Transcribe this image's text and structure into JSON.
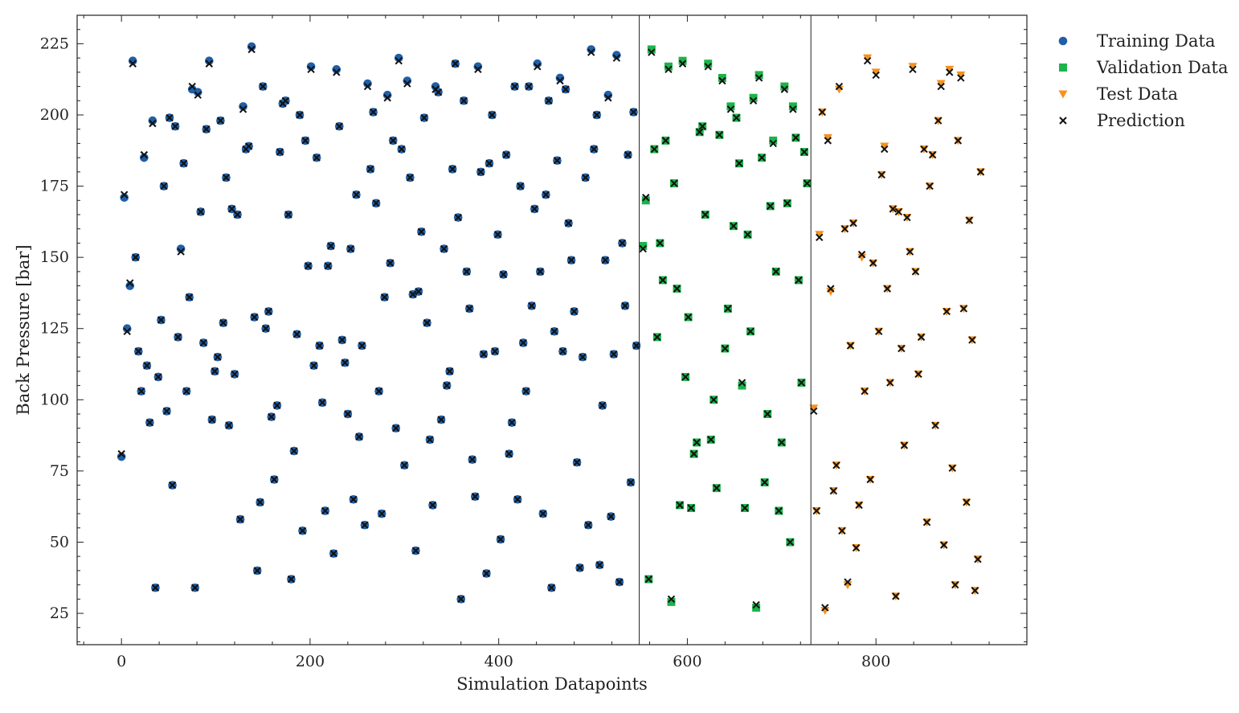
{
  "chart_data": {
    "type": "scatter",
    "xlabel": "Simulation Datapoints",
    "ylabel": "Back Pressure [bar]",
    "xlim": [
      -47,
      960
    ],
    "ylim": [
      14,
      235
    ],
    "xticks": [
      0,
      200,
      400,
      600,
      800
    ],
    "yticks": [
      25,
      50,
      75,
      100,
      125,
      150,
      175,
      200,
      225
    ],
    "grid": false,
    "legend_position": "outside-right-top",
    "split_lines_x": [
      549,
      731
    ],
    "series": [
      {
        "name": "Training Data",
        "marker": "circle",
        "color": "#1f5fa8",
        "x": [
          0,
          3,
          6,
          9,
          12,
          15,
          18,
          21,
          24,
          27,
          30,
          33,
          36,
          39,
          42,
          45,
          48,
          51,
          54,
          57,
          60,
          63,
          66,
          69,
          72,
          75,
          78,
          81,
          84,
          87,
          90,
          93,
          96,
          99,
          102,
          105,
          108,
          111,
          114,
          117,
          120,
          123,
          126,
          129,
          132,
          135,
          138,
          141,
          144,
          147,
          150,
          153,
          156,
          159,
          162,
          165,
          168,
          171,
          174,
          177,
          180,
          183,
          186,
          189,
          192,
          195,
          198,
          201,
          204,
          207,
          210,
          213,
          216,
          219,
          222,
          225,
          228,
          231,
          234,
          237,
          240,
          243,
          246,
          249,
          252,
          255,
          258,
          261,
          264,
          267,
          270,
          273,
          276,
          279,
          282,
          285,
          288,
          291,
          294,
          297,
          300,
          303,
          306,
          309,
          312,
          315,
          318,
          321,
          324,
          327,
          330,
          333,
          336,
          339,
          342,
          345,
          348,
          351,
          354,
          357,
          360,
          363,
          366,
          369,
          372,
          375,
          378,
          381,
          384,
          387,
          390,
          393,
          396,
          399,
          402,
          405,
          408,
          411,
          414,
          417,
          420,
          423,
          426,
          429,
          432,
          435,
          438,
          441,
          444,
          447,
          450,
          453,
          456,
          459,
          462,
          465,
          468,
          471,
          474,
          477,
          480,
          483,
          486,
          489,
          492,
          495,
          498,
          501,
          504,
          507,
          510,
          513,
          516,
          519,
          522,
          525,
          528,
          531,
          534,
          537,
          540,
          543,
          546
        ],
        "y": [
          80,
          171,
          125,
          140,
          219,
          150,
          117,
          103,
          185,
          112,
          92,
          198,
          34,
          108,
          128,
          175,
          96,
          199,
          70,
          196,
          122,
          153,
          183,
          103,
          136,
          209,
          34,
          208,
          166,
          120,
          195,
          219,
          93,
          110,
          115,
          198,
          127,
          178,
          91,
          167,
          109,
          165,
          58,
          203,
          188,
          189,
          224,
          129,
          40,
          64,
          210,
          125,
          131,
          94,
          72,
          98,
          187,
          204,
          205,
          165,
          37,
          82,
          123,
          200,
          54,
          191,
          147,
          217,
          112,
          185,
          119,
          99,
          61,
          147,
          154,
          46,
          216,
          196,
          121,
          113,
          95,
          153,
          65,
          172,
          87,
          119,
          56,
          211,
          181,
          201,
          169,
          103,
          60,
          136,
          207,
          148,
          191,
          90,
          220,
          188,
          77,
          212,
          178,
          137,
          47,
          138,
          159,
          199,
          127,
          86,
          63,
          210,
          208,
          93,
          153,
          105,
          110,
          181,
          218,
          164,
          30,
          205,
          145,
          132,
          79,
          66,
          217,
          180,
          116,
          39,
          183,
          200,
          117,
          158,
          51,
          144,
          186,
          81,
          92,
          210,
          65,
          175,
          120,
          103,
          210,
          133,
          167,
          218,
          145,
          60,
          172,
          205,
          34,
          124,
          184,
          213,
          117,
          209,
          162,
          149,
          131,
          78,
          41,
          115,
          178,
          56,
          223,
          188,
          200,
          42,
          98,
          149,
          207,
          59,
          116,
          221,
          36,
          155,
          133,
          186,
          71,
          201,
          119
        ]
      },
      {
        "name": "Validation Data",
        "marker": "square",
        "color": "#1bb44a",
        "x": [
          553,
          556,
          559,
          562,
          565,
          568,
          571,
          574,
          577,
          580,
          583,
          586,
          589,
          592,
          595,
          598,
          601,
          604,
          607,
          610,
          613,
          616,
          619,
          622,
          625,
          628,
          631,
          634,
          637,
          640,
          643,
          646,
          649,
          652,
          655,
          658,
          661,
          664,
          667,
          670,
          673,
          676,
          679,
          682,
          685,
          688,
          691,
          694,
          697,
          700,
          703,
          706,
          709,
          712,
          715,
          718,
          721,
          724,
          727
        ],
        "y": [
          154,
          170,
          37,
          223,
          188,
          122,
          155,
          142,
          191,
          217,
          29,
          176,
          139,
          63,
          219,
          108,
          129,
          62,
          81,
          85,
          194,
          196,
          165,
          218,
          86,
          100,
          69,
          193,
          213,
          118,
          132,
          203,
          161,
          199,
          183,
          105,
          62,
          158,
          124,
          206,
          27,
          214,
          185,
          71,
          95,
          168,
          191,
          145,
          61,
          85,
          210,
          169,
          50,
          203,
          192,
          142,
          106,
          187,
          176
        ]
      },
      {
        "name": "Test Data",
        "marker": "triangle-down",
        "color": "#f5921e",
        "x": [
          734,
          737,
          740,
          743,
          746,
          749,
          752,
          755,
          758,
          761,
          764,
          767,
          770,
          773,
          776,
          779,
          782,
          785,
          788,
          791,
          794,
          797,
          800,
          803,
          806,
          809,
          812,
          815,
          818,
          821,
          824,
          827,
          830,
          833,
          836,
          839,
          842,
          845,
          848,
          851,
          854,
          857,
          860,
          863,
          866,
          869,
          872,
          875,
          878,
          881,
          884,
          887,
          890,
          893,
          896,
          899,
          902,
          905,
          908,
          911
        ],
        "y": [
          97,
          61,
          158,
          201,
          26,
          192,
          138,
          68,
          77,
          209,
          54,
          160,
          35,
          119,
          162,
          48,
          63,
          150,
          103,
          220,
          72,
          148,
          215,
          124,
          179,
          189,
          139,
          106,
          167,
          31,
          166,
          118,
          84,
          164,
          152,
          217,
          145,
          109,
          122,
          188,
          57,
          175,
          186,
          91,
          198,
          211,
          49,
          131,
          216,
          76,
          35,
          191,
          214,
          132,
          64,
          163,
          121,
          33,
          44,
          180
        ]
      },
      {
        "name": "Prediction",
        "marker": "x",
        "color": "#111111",
        "x": [
          0,
          3,
          6,
          9,
          12,
          15,
          18,
          21,
          24,
          27,
          30,
          33,
          36,
          39,
          42,
          45,
          48,
          51,
          54,
          57,
          60,
          63,
          66,
          69,
          72,
          75,
          78,
          81,
          84,
          87,
          90,
          93,
          96,
          99,
          102,
          105,
          108,
          111,
          114,
          117,
          120,
          123,
          126,
          129,
          132,
          135,
          138,
          141,
          144,
          147,
          150,
          153,
          156,
          159,
          162,
          165,
          168,
          171,
          174,
          177,
          180,
          183,
          186,
          189,
          192,
          195,
          198,
          201,
          204,
          207,
          210,
          213,
          216,
          219,
          222,
          225,
          228,
          231,
          234,
          237,
          240,
          243,
          246,
          249,
          252,
          255,
          258,
          261,
          264,
          267,
          270,
          273,
          276,
          279,
          282,
          285,
          288,
          291,
          294,
          297,
          300,
          303,
          306,
          309,
          312,
          315,
          318,
          321,
          324,
          327,
          330,
          333,
          336,
          339,
          342,
          345,
          348,
          351,
          354,
          357,
          360,
          363,
          366,
          369,
          372,
          375,
          378,
          381,
          384,
          387,
          390,
          393,
          396,
          399,
          402,
          405,
          408,
          411,
          414,
          417,
          420,
          423,
          426,
          429,
          432,
          435,
          438,
          441,
          444,
          447,
          450,
          453,
          456,
          459,
          462,
          465,
          468,
          471,
          474,
          477,
          480,
          483,
          486,
          489,
          492,
          495,
          498,
          501,
          504,
          507,
          510,
          513,
          516,
          519,
          522,
          525,
          528,
          531,
          534,
          537,
          540,
          543,
          546,
          553,
          556,
          559,
          562,
          565,
          568,
          571,
          574,
          577,
          580,
          583,
          586,
          589,
          592,
          595,
          598,
          601,
          604,
          607,
          610,
          613,
          616,
          619,
          622,
          625,
          628,
          631,
          634,
          637,
          640,
          643,
          646,
          649,
          652,
          655,
          658,
          661,
          664,
          667,
          670,
          673,
          676,
          679,
          682,
          685,
          688,
          691,
          694,
          697,
          700,
          703,
          706,
          709,
          712,
          715,
          718,
          721,
          724,
          727,
          734,
          737,
          740,
          743,
          746,
          749,
          752,
          755,
          758,
          761,
          764,
          767,
          770,
          773,
          776,
          779,
          782,
          785,
          788,
          791,
          794,
          797,
          800,
          803,
          806,
          809,
          812,
          815,
          818,
          821,
          824,
          827,
          830,
          833,
          836,
          839,
          842,
          845,
          848,
          851,
          854,
          857,
          860,
          863,
          866,
          869,
          872,
          875,
          878,
          881,
          884,
          887,
          890,
          893,
          896,
          899,
          902,
          905,
          908,
          911
        ],
        "y": [
          81,
          172,
          124,
          141,
          218,
          150,
          117,
          103,
          186,
          112,
          92,
          197,
          34,
          108,
          128,
          175,
          96,
          199,
          70,
          196,
          122,
          152,
          183,
          103,
          136,
          210,
          34,
          207,
          166,
          120,
          195,
          218,
          93,
          110,
          115,
          198,
          127,
          178,
          91,
          167,
          109,
          165,
          58,
          202,
          188,
          189,
          223,
          129,
          40,
          64,
          210,
          125,
          131,
          94,
          72,
          98,
          187,
          204,
          205,
          165,
          37,
          82,
          123,
          200,
          54,
          191,
          147,
          216,
          112,
          185,
          119,
          99,
          61,
          147,
          154,
          46,
          215,
          196,
          121,
          113,
          95,
          153,
          65,
          172,
          87,
          119,
          56,
          210,
          181,
          201,
          169,
          103,
          60,
          136,
          206,
          148,
          191,
          90,
          219,
          188,
          77,
          211,
          178,
          137,
          47,
          138,
          159,
          199,
          127,
          86,
          63,
          209,
          208,
          93,
          153,
          105,
          110,
          181,
          218,
          164,
          30,
          205,
          145,
          132,
          79,
          66,
          216,
          180,
          116,
          39,
          183,
          200,
          117,
          158,
          51,
          144,
          186,
          81,
          92,
          210,
          65,
          175,
          120,
          103,
          210,
          133,
          167,
          217,
          145,
          60,
          172,
          205,
          34,
          124,
          184,
          212,
          117,
          209,
          162,
          149,
          131,
          78,
          41,
          115,
          178,
          56,
          222,
          188,
          200,
          42,
          98,
          149,
          206,
          59,
          116,
          220,
          36,
          155,
          133,
          186,
          71,
          201,
          119,
          153,
          171,
          37,
          222,
          188,
          122,
          155,
          142,
          191,
          216,
          30,
          176,
          139,
          63,
          218,
          108,
          129,
          62,
          81,
          85,
          194,
          196,
          165,
          217,
          86,
          100,
          69,
          193,
          212,
          118,
          132,
          202,
          161,
          199,
          183,
          106,
          62,
          158,
          124,
          205,
          28,
          213,
          185,
          71,
          95,
          168,
          190,
          145,
          61,
          85,
          209,
          169,
          50,
          202,
          192,
          142,
          106,
          187,
          176,
          96,
          61,
          157,
          201,
          27,
          191,
          139,
          68,
          77,
          210,
          54,
          160,
          36,
          119,
          162,
          48,
          63,
          151,
          103,
          219,
          72,
          148,
          214,
          124,
          179,
          188,
          139,
          106,
          167,
          31,
          166,
          118,
          84,
          164,
          152,
          216,
          145,
          109,
          122,
          188,
          57,
          175,
          186,
          91,
          198,
          210,
          49,
          131,
          215,
          76,
          35,
          191,
          213,
          132,
          64,
          163,
          121,
          33,
          44,
          180
        ]
      }
    ]
  }
}
